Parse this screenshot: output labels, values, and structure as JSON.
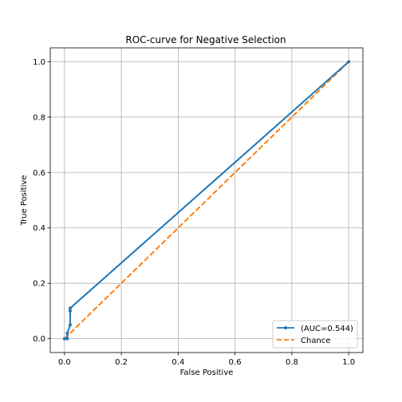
{
  "chart_data": {
    "type": "line",
    "title": "ROC-curve for Negative Selection",
    "xlabel": "False Positive",
    "ylabel": "True Positive",
    "xlim": [
      -0.05,
      1.05
    ],
    "ylim": [
      -0.05,
      1.05
    ],
    "xticks": [
      "0.0",
      "0.2",
      "0.4",
      "0.6",
      "0.8",
      "1.0"
    ],
    "yticks": [
      "0.0",
      "0.2",
      "0.4",
      "0.6",
      "0.8",
      "1.0"
    ],
    "grid": true,
    "legend_position": "lower right",
    "series": [
      {
        "name": "(AUC=0.544)",
        "color": "#1f77b4",
        "style": "solid",
        "marker": "dot",
        "x": [
          0.0,
          0.01,
          0.01,
          0.02,
          0.02,
          0.02,
          1.0
        ],
        "y": [
          0.0,
          0.0,
          0.02,
          0.05,
          0.1,
          0.11,
          1.0
        ]
      },
      {
        "name": "Chance",
        "color": "#ff7f0e",
        "style": "dashed",
        "marker": "none",
        "x": [
          0.0,
          1.0
        ],
        "y": [
          0.0,
          1.0
        ]
      }
    ]
  }
}
